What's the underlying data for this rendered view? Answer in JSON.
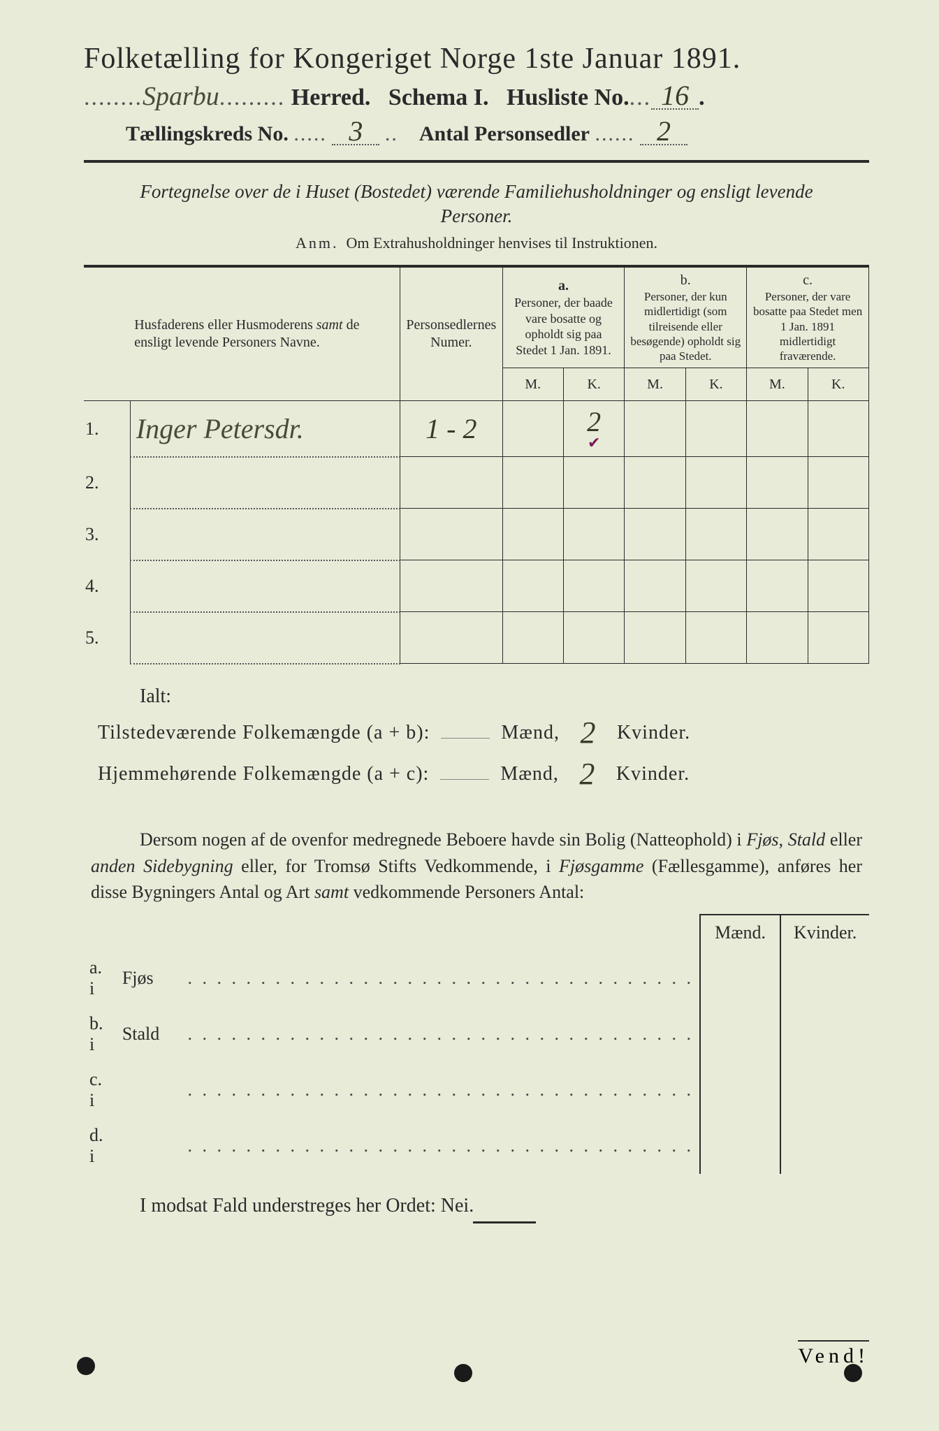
{
  "header": {
    "title": "Folketælling for Kongeriget Norge 1ste Januar 1891.",
    "herred_value": "Sparbu",
    "herred_label": "Herred.",
    "schema_label": "Schema I.",
    "husliste_label": "Husliste No.",
    "husliste_value": "16",
    "kreds_label": "Tællingskreds No.",
    "kreds_value": "3",
    "antal_label": "Antal Personsedler",
    "antal_value": "2"
  },
  "subtitle": "Fortegnelse over de i Huset (Bostedet) værende Familiehusholdninger og ensligt levende Personer.",
  "anm": {
    "label": "Anm.",
    "text": "Om Extrahusholdninger henvises til Instruktionen."
  },
  "table": {
    "col_name": "Husfaderens eller Husmoderens samt de ensligt levende Personers Navne.",
    "col_num": "Personsedlernes Numer.",
    "col_a_label": "a.",
    "col_a": "Personer, der baade vare bosatte og opholdt sig paa Stedet 1 Jan. 1891.",
    "col_b_label": "b.",
    "col_b": "Personer, der kun midlertidigt (som tilreisende eller besøgende) opholdt sig paa Stedet.",
    "col_c_label": "c.",
    "col_c": "Personer, der vare bosatte paa Stedet men 1 Jan. 1891 midlertidigt fraværende.",
    "m": "M.",
    "k": "K.",
    "rows": [
      {
        "n": "1.",
        "name": "Inger Petersdr.",
        "num": "1 - 2",
        "a_m": "",
        "a_k": "2",
        "check": "✔",
        "b_m": "",
        "b_k": "",
        "c_m": "",
        "c_k": ""
      },
      {
        "n": "2.",
        "name": "",
        "num": "",
        "a_m": "",
        "a_k": "",
        "check": "",
        "b_m": "",
        "b_k": "",
        "c_m": "",
        "c_k": ""
      },
      {
        "n": "3.",
        "name": "",
        "num": "",
        "a_m": "",
        "a_k": "",
        "check": "",
        "b_m": "",
        "b_k": "",
        "c_m": "",
        "c_k": ""
      },
      {
        "n": "4.",
        "name": "",
        "num": "",
        "a_m": "",
        "a_k": "",
        "check": "",
        "b_m": "",
        "b_k": "",
        "c_m": "",
        "c_k": ""
      },
      {
        "n": "5.",
        "name": "",
        "num": "",
        "a_m": "",
        "a_k": "",
        "check": "",
        "b_m": "",
        "b_k": "",
        "c_m": "",
        "c_k": ""
      }
    ]
  },
  "totals": {
    "ialt": "Ialt:",
    "line1_label": "Tilstedeværende Folkemængde (a + b):",
    "line2_label": "Hjemmehørende Folkemængde (a + c):",
    "maend": "Mænd,",
    "kvinder": "Kvinder.",
    "line1_m": "",
    "line1_k": "2",
    "line2_m": "",
    "line2_k": "2"
  },
  "para": "Dersom nogen af de ovenfor medregnede Beboere havde sin Bolig (Natteophold) i Fjøs, Stald eller anden Sidebygning eller, for Tromsø Stifts Vedkommende, i Fjøsgamme (Fællesgamme), anføres her disse Bygningers Antal og Art samt vedkommende Personers Antal:",
  "lower": {
    "maend": "Mænd.",
    "kvinder": "Kvinder.",
    "rows": [
      {
        "lbl": "a.  i",
        "loc": "Fjøs"
      },
      {
        "lbl": "b.  i",
        "loc": "Stald"
      },
      {
        "lbl": "c.  i",
        "loc": ""
      },
      {
        "lbl": "d.  i",
        "loc": ""
      }
    ]
  },
  "nei": "I modsat Fald understreges her Ordet: Nei.",
  "vend": "Vend!",
  "colors": {
    "paper": "#e8ebd8",
    "ink": "#2a2a2a",
    "handwriting": "#4a4a3a",
    "purple_mark": "#7a1a5a"
  }
}
